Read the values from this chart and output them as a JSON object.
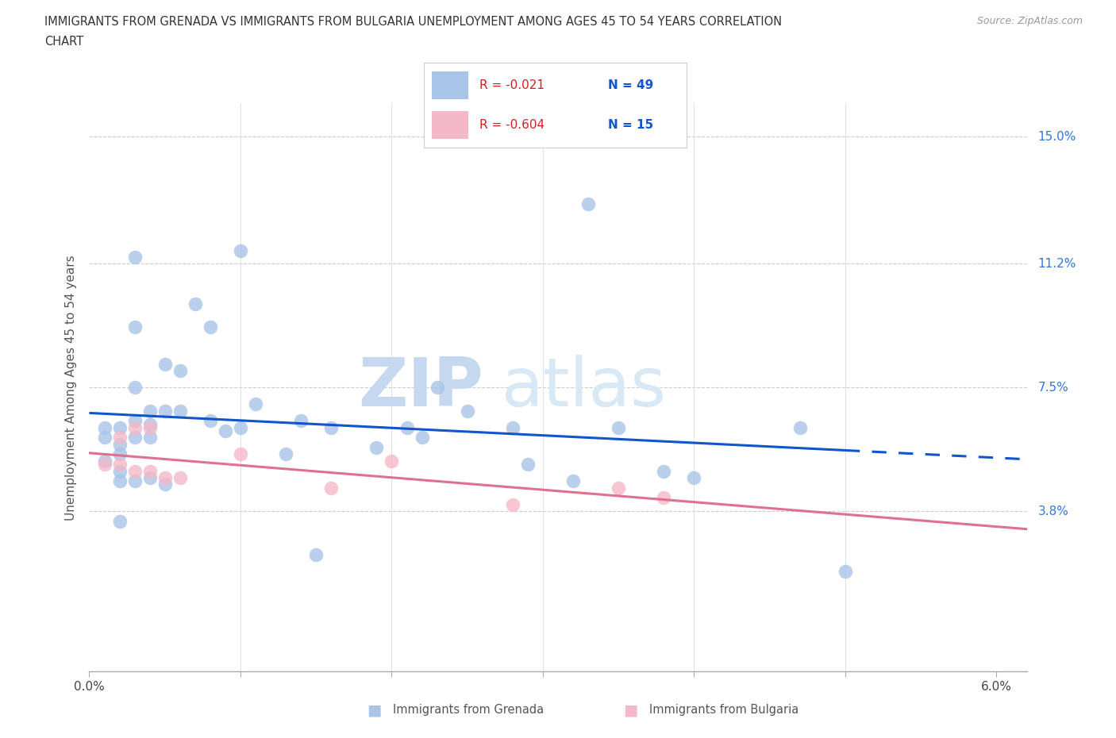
{
  "title_line1": "IMMIGRANTS FROM GRENADA VS IMMIGRANTS FROM BULGARIA UNEMPLOYMENT AMONG AGES 45 TO 54 YEARS CORRELATION",
  "title_line2": "CHART",
  "source": "Source: ZipAtlas.com",
  "ylabel": "Unemployment Among Ages 45 to 54 years",
  "xlim": [
    0.0,
    0.062
  ],
  "ylim": [
    -0.01,
    0.16
  ],
  "xticks": [
    0.0,
    0.01,
    0.02,
    0.03,
    0.04,
    0.05,
    0.06
  ],
  "xticklabels": [
    "0.0%",
    "",
    "",
    "",
    "",
    "",
    "6.0%"
  ],
  "ytick_positions": [
    0.038,
    0.075,
    0.112,
    0.15
  ],
  "yticklabels": [
    "3.8%",
    "7.5%",
    "11.2%",
    "15.0%"
  ],
  "grenada_color": "#a8c4e8",
  "bulgaria_color": "#f5b8c8",
  "grenada_line_color": "#1155cc",
  "bulgaria_line_color": "#e07090",
  "legend_r_grenada": "R = -0.021",
  "legend_n_grenada": "N = 49",
  "legend_r_bulgaria": "R = -0.604",
  "legend_n_bulgaria": "N = 15",
  "watermark_zip": "ZIP",
  "watermark_atlas": "atlas",
  "background_color": "#ffffff",
  "grid_color": "#cccccc",
  "grenada_x": [
    0.001,
    0.001,
    0.001,
    0.002,
    0.002,
    0.002,
    0.002,
    0.002,
    0.002,
    0.003,
    0.003,
    0.003,
    0.003,
    0.003,
    0.003,
    0.004,
    0.004,
    0.004,
    0.004,
    0.005,
    0.005,
    0.005,
    0.006,
    0.006,
    0.007,
    0.008,
    0.008,
    0.009,
    0.01,
    0.01,
    0.011,
    0.013,
    0.014,
    0.015,
    0.016,
    0.019,
    0.021,
    0.022,
    0.023,
    0.025,
    0.028,
    0.029,
    0.032,
    0.033,
    0.035,
    0.038,
    0.04,
    0.047,
    0.05
  ],
  "grenada_y": [
    0.063,
    0.06,
    0.053,
    0.063,
    0.058,
    0.055,
    0.05,
    0.047,
    0.035,
    0.114,
    0.093,
    0.075,
    0.065,
    0.06,
    0.047,
    0.068,
    0.064,
    0.06,
    0.048,
    0.082,
    0.068,
    0.046,
    0.08,
    0.068,
    0.1,
    0.093,
    0.065,
    0.062,
    0.116,
    0.063,
    0.07,
    0.055,
    0.065,
    0.025,
    0.063,
    0.057,
    0.063,
    0.06,
    0.075,
    0.068,
    0.063,
    0.052,
    0.047,
    0.13,
    0.063,
    0.05,
    0.048,
    0.063,
    0.02
  ],
  "bulgaria_x": [
    0.001,
    0.002,
    0.002,
    0.003,
    0.003,
    0.004,
    0.004,
    0.005,
    0.006,
    0.01,
    0.016,
    0.02,
    0.028,
    0.035,
    0.038
  ],
  "bulgaria_y": [
    0.052,
    0.06,
    0.052,
    0.063,
    0.05,
    0.063,
    0.05,
    0.048,
    0.048,
    0.055,
    0.045,
    0.053,
    0.04,
    0.045,
    0.042
  ]
}
